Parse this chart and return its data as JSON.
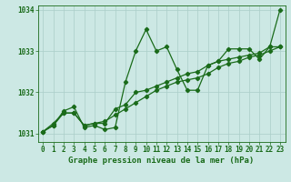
{
  "xlabel": "Graphe pression niveau de la mer (hPa)",
  "bg_color": "#cce8e4",
  "line_color": "#1a6b1a",
  "grid_color": "#aacec8",
  "ylim": [
    1030.8,
    1034.1
  ],
  "xlim": [
    -0.5,
    23.5
  ],
  "yticks": [
    1031,
    1032,
    1033,
    1034
  ],
  "xticks": [
    0,
    1,
    2,
    3,
    4,
    5,
    6,
    7,
    8,
    9,
    10,
    11,
    12,
    13,
    14,
    15,
    16,
    17,
    18,
    19,
    20,
    21,
    22,
    23
  ],
  "series1": [
    1031.05,
    1031.2,
    1031.55,
    1031.65,
    1031.15,
    1031.2,
    1031.1,
    1031.15,
    1032.25,
    1033.0,
    1033.52,
    1033.0,
    1033.1,
    1032.55,
    1032.05,
    1032.05,
    1032.65,
    1032.75,
    1033.05,
    1033.05,
    1033.05,
    1032.8,
    1033.1,
    1034.0
  ],
  "series2": [
    1031.05,
    1031.2,
    1031.5,
    1031.5,
    1031.2,
    1031.25,
    1031.3,
    1031.45,
    1031.6,
    1031.75,
    1031.9,
    1032.05,
    1032.15,
    1032.25,
    1032.3,
    1032.35,
    1032.45,
    1032.6,
    1032.7,
    1032.75,
    1032.85,
    1032.9,
    1033.0,
    1033.1
  ],
  "series3": [
    1031.05,
    1031.25,
    1031.5,
    1031.5,
    1031.2,
    1031.25,
    1031.25,
    1031.6,
    1031.7,
    1032.0,
    1032.05,
    1032.15,
    1032.25,
    1032.35,
    1032.45,
    1032.5,
    1032.65,
    1032.75,
    1032.8,
    1032.85,
    1032.9,
    1032.95,
    1033.1,
    1033.1
  ],
  "xlabel_fontsize": 6.5,
  "tick_fontsize": 5.5,
  "ytick_fontsize": 5.5
}
